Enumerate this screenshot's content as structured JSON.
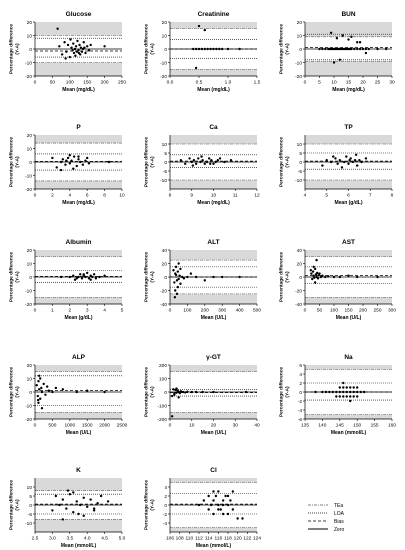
{
  "colors": {
    "tea_band": "#d9d9d9",
    "point": "#000000",
    "line": "#000000"
  },
  "legend": {
    "items": [
      "TEa",
      "LOA",
      "Bias",
      "Zero"
    ]
  },
  "chart_data": [
    {
      "type": "scatter",
      "title": "Glucose",
      "xlabel": "Mean (mg/dL)",
      "ylabel": "Percentage difference (Y-A)",
      "xlim": [
        0,
        250
      ],
      "ylim": [
        -20,
        20
      ],
      "xticks": [
        "0",
        "50",
        "100",
        "150",
        "200",
        "250"
      ],
      "yticks": [
        "20",
        "10",
        "0",
        "-10",
        "-20"
      ],
      "xtick_values": [
        0,
        50,
        100,
        150,
        200,
        250
      ],
      "ytick_values": [
        20,
        10,
        0,
        -10,
        -20
      ],
      "tea": 10,
      "loa": [
        -6,
        8
      ],
      "bias": -1.5,
      "x": [
        65,
        70,
        78,
        85,
        90,
        95,
        100,
        105,
        108,
        110,
        112,
        115,
        118,
        120,
        122,
        125,
        128,
        130,
        132,
        135,
        138,
        140,
        145,
        150,
        155,
        160,
        200,
        88,
        102,
        116,
        126,
        142
      ],
      "y": [
        15,
        2,
        -4,
        5,
        -2,
        3,
        -6,
        1,
        -1,
        4,
        -3,
        0,
        2,
        -2,
        6,
        -1,
        3,
        -4,
        1,
        -2,
        0,
        5,
        -3,
        2,
        -1,
        3,
        2,
        -7,
        7,
        -5,
        -3,
        1
      ]
    },
    {
      "type": "scatter",
      "title": "Creatinine",
      "xlabel": "Mean (mg/dL)",
      "ylabel": "Percentage difference (Y-A)",
      "xlim": [
        0,
        1.5
      ],
      "ylim": [
        -20,
        20
      ],
      "xticks": [
        "0.0",
        "0.5",
        "1.0",
        "1.5"
      ],
      "yticks": [
        "20",
        "10",
        "0",
        "-10",
        "-20"
      ],
      "xtick_values": [
        0,
        0.5,
        1.0,
        1.5
      ],
      "ytick_values": [
        20,
        10,
        0,
        -10,
        -20
      ],
      "tea": 15,
      "loa": [
        -7,
        7
      ],
      "bias": 0,
      "x": [
        0.4,
        0.45,
        0.5,
        0.55,
        0.6,
        0.65,
        0.7,
        0.75,
        0.8,
        0.85,
        0.9,
        1.0,
        1.2,
        0.5,
        0.6,
        0.45
      ],
      "y": [
        0,
        0,
        0,
        0,
        0,
        0,
        0,
        0,
        0,
        0,
        0,
        0,
        0,
        17,
        14,
        -14
      ]
    },
    {
      "type": "scatter",
      "title": "BUN",
      "xlabel": "Mean (mg/dL)",
      "ylabel": "Percentage difference (Y-A)",
      "xlim": [
        0,
        30
      ],
      "ylim": [
        -20,
        20
      ],
      "xticks": [
        "0",
        "5",
        "10",
        "15",
        "20",
        "25",
        "30"
      ],
      "yticks": [
        "20",
        "10",
        "0",
        "-10",
        "-20"
      ],
      "xtick_values": [
        0,
        5,
        10,
        15,
        20,
        25,
        30
      ],
      "ytick_values": [
        20,
        10,
        0,
        -10,
        -20
      ],
      "tea": 9,
      "loa": [
        -8,
        11
      ],
      "bias": 1,
      "x": [
        5,
        6,
        7,
        8,
        8.5,
        9,
        9.5,
        10,
        10.5,
        11,
        11.5,
        12,
        12.5,
        13,
        13.5,
        14,
        14.5,
        15,
        15.5,
        16,
        17,
        18,
        19,
        20,
        21,
        22,
        25,
        28,
        9,
        11,
        13,
        15,
        16,
        18,
        19,
        21,
        10,
        12
      ],
      "y": [
        0,
        0,
        0,
        0,
        0,
        0,
        0,
        0,
        0,
        0,
        0,
        0,
        0,
        0,
        0,
        0,
        0,
        0,
        0,
        0,
        0,
        0,
        0,
        0,
        0,
        0,
        0,
        0,
        12,
        8,
        10,
        7,
        9,
        5,
        5,
        -3,
        -10,
        -8
      ]
    },
    {
      "type": "scatter",
      "title": "P",
      "xlabel": "Mean (mg/dL)",
      "ylabel": "Percentage difference (Y-A)",
      "xlim": [
        0,
        10
      ],
      "ylim": [
        -20,
        20
      ],
      "xticks": [
        "0",
        "2",
        "4",
        "6",
        "8",
        "10"
      ],
      "yticks": [
        "20",
        "10",
        "0",
        "-10",
        "-20"
      ],
      "xtick_values": [
        0,
        2,
        4,
        6,
        8,
        10
      ],
      "ytick_values": [
        20,
        10,
        0,
        -10,
        -20
      ],
      "tea": 14,
      "loa": [
        -6,
        6
      ],
      "bias": 0.5,
      "x": [
        2,
        2.5,
        3,
        3.2,
        3.5,
        3.8,
        4,
        4.2,
        4.5,
        4.8,
        5,
        5.2,
        5.5,
        5.8,
        6,
        6.2,
        3,
        4,
        5,
        4.4,
        3.6,
        8.5
      ],
      "y": [
        3,
        -4,
        0,
        2,
        -2,
        3,
        -1,
        1,
        4,
        -3,
        2,
        0,
        -2,
        1,
        3,
        -1,
        -6,
        5,
        4,
        -5,
        1,
        0
      ]
    },
    {
      "type": "scatter",
      "title": "Ca",
      "xlabel": "Mean (mg/dL)",
      "ylabel": "Percentage difference (Y-A)",
      "xlim": [
        8,
        12
      ],
      "ylim": [
        -15,
        15
      ],
      "xticks": [
        "8",
        "9",
        "10",
        "11",
        "12"
      ],
      "yticks": [
        "10",
        "5",
        "0",
        "-5",
        "-10"
      ],
      "xtick_values": [
        8,
        9,
        10,
        11,
        12
      ],
      "ytick_values": [
        10,
        5,
        0,
        -5,
        -10
      ],
      "tea": 10,
      "loa": [
        -3,
        4
      ],
      "bias": 0.5,
      "x": [
        8.5,
        8.7,
        8.9,
        9.0,
        9.1,
        9.2,
        9.3,
        9.4,
        9.5,
        9.6,
        9.7,
        9.8,
        9.9,
        10.0,
        10.1,
        10.2,
        10.3,
        10.5,
        10.8,
        9.05,
        9.45,
        9.85
      ],
      "y": [
        1,
        -1,
        2,
        0,
        1,
        -1,
        2,
        0,
        1,
        -1,
        0,
        2,
        1,
        -1,
        0,
        1,
        2,
        0,
        1,
        -2,
        3,
        -1
      ]
    },
    {
      "type": "scatter",
      "title": "TP",
      "xlabel": "Mean (g/dL)",
      "ylabel": "Percentage difference (Y-A)",
      "xlim": [
        4,
        8
      ],
      "ylim": [
        -15,
        15
      ],
      "xticks": [
        "4",
        "5",
        "6",
        "7",
        "8"
      ],
      "yticks": [
        "10",
        "5",
        "0",
        "-5",
        "-10"
      ],
      "xtick_values": [
        4,
        5,
        6,
        7,
        8
      ],
      "ytick_values": [
        10,
        5,
        0,
        -5,
        -10
      ],
      "tea": 10,
      "loa": [
        -4,
        5
      ],
      "bias": 0.5,
      "x": [
        4.8,
        5.0,
        5.2,
        5.4,
        5.5,
        5.6,
        5.8,
        5.9,
        6.0,
        6.1,
        6.2,
        6.3,
        6.4,
        6.5,
        6.6,
        6.8,
        5.3,
        5.7,
        6.05,
        6.35
      ],
      "y": [
        -2,
        1,
        0,
        2,
        -1,
        1,
        0,
        3,
        -1,
        2,
        0,
        1,
        -2,
        1,
        0,
        2,
        3,
        -3,
        1,
        4
      ]
    },
    {
      "type": "scatter",
      "title": "Albumin",
      "xlabel": "Mean (g/dL)",
      "ylabel": "Percentage difference (Y-A)",
      "xlim": [
        0,
        5
      ],
      "ylim": [
        -20,
        20
      ],
      "xticks": [
        "0",
        "1",
        "2",
        "3",
        "4",
        "5"
      ],
      "yticks": [
        "20",
        "10",
        "0",
        "-10",
        "-20"
      ],
      "xtick_values": [
        0,
        1,
        2,
        3,
        4,
        5
      ],
      "ytick_values": [
        20,
        10,
        0,
        -10,
        -20
      ],
      "tea": 15,
      "loa": [
        -4,
        5
      ],
      "bias": 0.5,
      "x": [
        2.0,
        2.2,
        2.4,
        2.5,
        2.6,
        2.7,
        2.8,
        2.9,
        3.0,
        3.1,
        3.2,
        3.3,
        3.4,
        3.5,
        3.7,
        4.0,
        2.3,
        2.8,
        3.2,
        1.5
      ],
      "y": [
        0,
        1,
        -1,
        0,
        2,
        -1,
        1,
        0,
        3,
        -1,
        1,
        0,
        2,
        -1,
        0,
        1,
        -2,
        2,
        -2,
        0
      ]
    },
    {
      "type": "scatter",
      "title": "ALT",
      "xlabel": "Mean (U/L)",
      "ylabel": "Percentage difference (Y-A)",
      "xlim": [
        0,
        500
      ],
      "ylim": [
        -40,
        40
      ],
      "xticks": [
        "0",
        "100",
        "200",
        "300",
        "400",
        "500"
      ],
      "yticks": [
        "40",
        "20",
        "0",
        "-20",
        "-40"
      ],
      "xtick_values": [
        0,
        100,
        200,
        300,
        400,
        500
      ],
      "ytick_values": [
        40,
        20,
        0,
        -20,
        -40
      ],
      "tea": 25,
      "loa": [
        -15,
        15
      ],
      "bias": 0,
      "x": [
        20,
        25,
        30,
        35,
        40,
        45,
        50,
        55,
        60,
        70,
        80,
        100,
        120,
        150,
        200,
        250,
        300,
        400,
        30,
        40,
        50,
        60,
        35,
        45,
        28
      ],
      "y": [
        10,
        -8,
        5,
        15,
        -5,
        8,
        -3,
        2,
        12,
        0,
        -2,
        0,
        5,
        0,
        -5,
        0,
        0,
        0,
        -20,
        -25,
        20,
        -10,
        3,
        -15,
        -30
      ]
    },
    {
      "type": "scatter",
      "title": "AST",
      "xlabel": "Mean (U/L)",
      "ylabel": "Percentage difference (Y-A)",
      "xlim": [
        0,
        300
      ],
      "ylim": [
        -40,
        40
      ],
      "xticks": [
        "0",
        "50",
        "100",
        "150",
        "200",
        "250",
        "300"
      ],
      "yticks": [
        "40",
        "20",
        "0",
        "-20",
        "-40"
      ],
      "xtick_values": [
        0,
        50,
        100,
        150,
        200,
        250,
        300
      ],
      "ytick_values": [
        40,
        20,
        0,
        -20,
        -40
      ],
      "tea": 30,
      "loa": [
        -10,
        15
      ],
      "bias": 2,
      "x": [
        20,
        22,
        25,
        28,
        30,
        32,
        35,
        38,
        40,
        42,
        45,
        48,
        50,
        55,
        60,
        70,
        80,
        100,
        120,
        150,
        180,
        250,
        30,
        35,
        40
      ],
      "y": [
        10,
        5,
        -3,
        8,
        2,
        -1,
        12,
        4,
        0,
        6,
        -2,
        3,
        5,
        0,
        2,
        0,
        1,
        0,
        0,
        2,
        0,
        0,
        15,
        -8,
        25
      ]
    },
    {
      "type": "scatter",
      "title": "ALP",
      "xlabel": "Mean (U/L)",
      "ylabel": "Percentage difference (Y-A)",
      "xlim": [
        0,
        2500
      ],
      "ylim": [
        -20,
        20
      ],
      "xticks": [
        "0",
        "500",
        "1000",
        "1500",
        "2000",
        "2500"
      ],
      "yticks": [
        "20",
        "10",
        "0",
        "-10",
        "-20"
      ],
      "xtick_values": [
        0,
        500,
        1000,
        1500,
        2000,
        2500
      ],
      "ytick_values": [
        20,
        10,
        0,
        -10,
        -20
      ],
      "tea": 15,
      "loa": [
        -10,
        12
      ],
      "bias": 1,
      "x": [
        50,
        80,
        100,
        120,
        150,
        180,
        200,
        250,
        300,
        350,
        400,
        500,
        600,
        800,
        1200,
        1500,
        2000,
        100,
        150,
        200,
        120,
        90
      ],
      "y": [
        5,
        -3,
        8,
        2,
        -5,
        3,
        0,
        6,
        -2,
        4,
        1,
        0,
        3,
        2,
        0,
        1,
        0,
        -8,
        10,
        -12,
        12,
        -6
      ]
    },
    {
      "type": "scatter",
      "title": "γ-GT",
      "xlabel": "Mean (U/L)",
      "ylabel": "Percentage difference (Y-A)",
      "xlim": [
        0,
        40
      ],
      "ylim": [
        -200,
        200
      ],
      "xticks": [
        "0",
        "10",
        "20",
        "30",
        "40"
      ],
      "yticks": [
        "200",
        "100",
        "0",
        "-100",
        "-200"
      ],
      "xtick_values": [
        0,
        10,
        20,
        30,
        40
      ],
      "ytick_values": [
        200,
        100,
        0,
        -100,
        -200
      ],
      "tea": 150,
      "loa": [
        -30,
        20
      ],
      "bias": -5,
      "x": [
        1,
        1.5,
        2,
        2.5,
        3,
        3.5,
        4,
        4.5,
        5,
        6,
        7,
        8,
        10,
        12,
        15,
        20,
        35,
        2,
        3,
        4,
        1
      ],
      "y": [
        -30,
        20,
        -10,
        15,
        -5,
        10,
        0,
        -8,
        5,
        0,
        -3,
        2,
        0,
        0,
        0,
        0,
        0,
        -20,
        25,
        -40,
        -180
      ]
    },
    {
      "type": "scatter",
      "title": "Na",
      "xlabel": "Mean (mmol/L)",
      "ylabel": "Percentage difference (Y-A)",
      "xlim": [
        135,
        160
      ],
      "ylim": [
        -6,
        6
      ],
      "xticks": [
        "135",
        "140",
        "145",
        "150",
        "155",
        "160"
      ],
      "yticks": [
        "6",
        "4",
        "2",
        "0",
        "-2",
        "-4",
        "-6"
      ],
      "xtick_values": [
        135,
        140,
        145,
        150,
        155,
        160
      ],
      "ytick_values": [
        6,
        4,
        2,
        0,
        -2,
        -4,
        -6
      ],
      "tea": 5,
      "loa": [
        -1.8,
        2
      ],
      "bias": 0,
      "x": [
        140,
        141,
        142,
        143,
        144,
        145,
        146,
        147,
        148,
        149,
        150,
        151,
        152,
        145,
        146,
        147,
        148,
        149,
        150,
        144,
        145,
        146,
        147,
        148,
        149,
        150,
        146,
        148,
        138
      ],
      "y": [
        0,
        0,
        0,
        0,
        0,
        0,
        0,
        0,
        0,
        0,
        0,
        0,
        0,
        1,
        1,
        1,
        1,
        1,
        1,
        -1,
        -1,
        -1,
        -1,
        -1,
        -1,
        -1,
        2,
        -2,
        0
      ]
    },
    {
      "type": "scatter",
      "title": "K",
      "xlabel": "Mean (mmol/L)",
      "ylabel": "Percentage difference (Y-A)",
      "xlim": [
        2.5,
        5.0
      ],
      "ylim": [
        -15,
        15
      ],
      "xticks": [
        "2.5",
        "3.0",
        "3.5",
        "4.0",
        "4.5",
        "5.0"
      ],
      "yticks": [
        "10",
        "5",
        "0",
        "-5",
        "-10"
      ],
      "xtick_values": [
        2.5,
        3.0,
        3.5,
        4.0,
        4.5,
        5.0
      ],
      "ytick_values": [
        10,
        5,
        0,
        -5,
        -10
      ],
      "tea": 8,
      "loa": [
        -5,
        6
      ],
      "bias": 0.5,
      "x": [
        3.0,
        3.1,
        3.2,
        3.3,
        3.4,
        3.5,
        3.6,
        3.7,
        3.8,
        3.9,
        4.0,
        4.1,
        4.2,
        4.3,
        4.4,
        4.6,
        3.3,
        3.6,
        3.9,
        4.2,
        3.45,
        3.75
      ],
      "y": [
        -3,
        5,
        0,
        3,
        -2,
        6,
        -4,
        2,
        0,
        4,
        -1,
        3,
        -3,
        1,
        5,
        2,
        -8,
        7,
        -6,
        -2,
        8,
        -5
      ]
    },
    {
      "type": "scatter",
      "title": "Cl",
      "xlabel": "Mean (mmol/L)",
      "ylabel": "Percentage difference (Y-A)",
      "xlim": [
        106,
        124
      ],
      "ylim": [
        -6,
        6
      ],
      "xticks": [
        "106",
        "108",
        "110",
        "112",
        "114",
        "116",
        "118",
        "120",
        "122",
        "124"
      ],
      "yticks": [
        "4",
        "2",
        "0",
        "-2",
        "-4"
      ],
      "xtick_values": [
        106,
        108,
        110,
        112,
        114,
        116,
        118,
        120,
        122,
        124
      ],
      "ytick_values": [
        4,
        2,
        0,
        -2,
        -4
      ],
      "tea": 5,
      "loa": [
        -2,
        2.5
      ],
      "bias": 0.2,
      "x": [
        112,
        113,
        114,
        114.5,
        115,
        115.5,
        116,
        116.5,
        117,
        117.5,
        118,
        118.5,
        119,
        114,
        115,
        116,
        117,
        118,
        119,
        115,
        116,
        117,
        118,
        120,
        121
      ],
      "y": [
        0,
        1,
        -1,
        0,
        1,
        2,
        0,
        -1,
        1,
        2,
        0,
        1,
        -1,
        2,
        -2,
        3,
        -2,
        2,
        3,
        3,
        -1,
        0,
        -2,
        -3,
        -3
      ]
    }
  ]
}
